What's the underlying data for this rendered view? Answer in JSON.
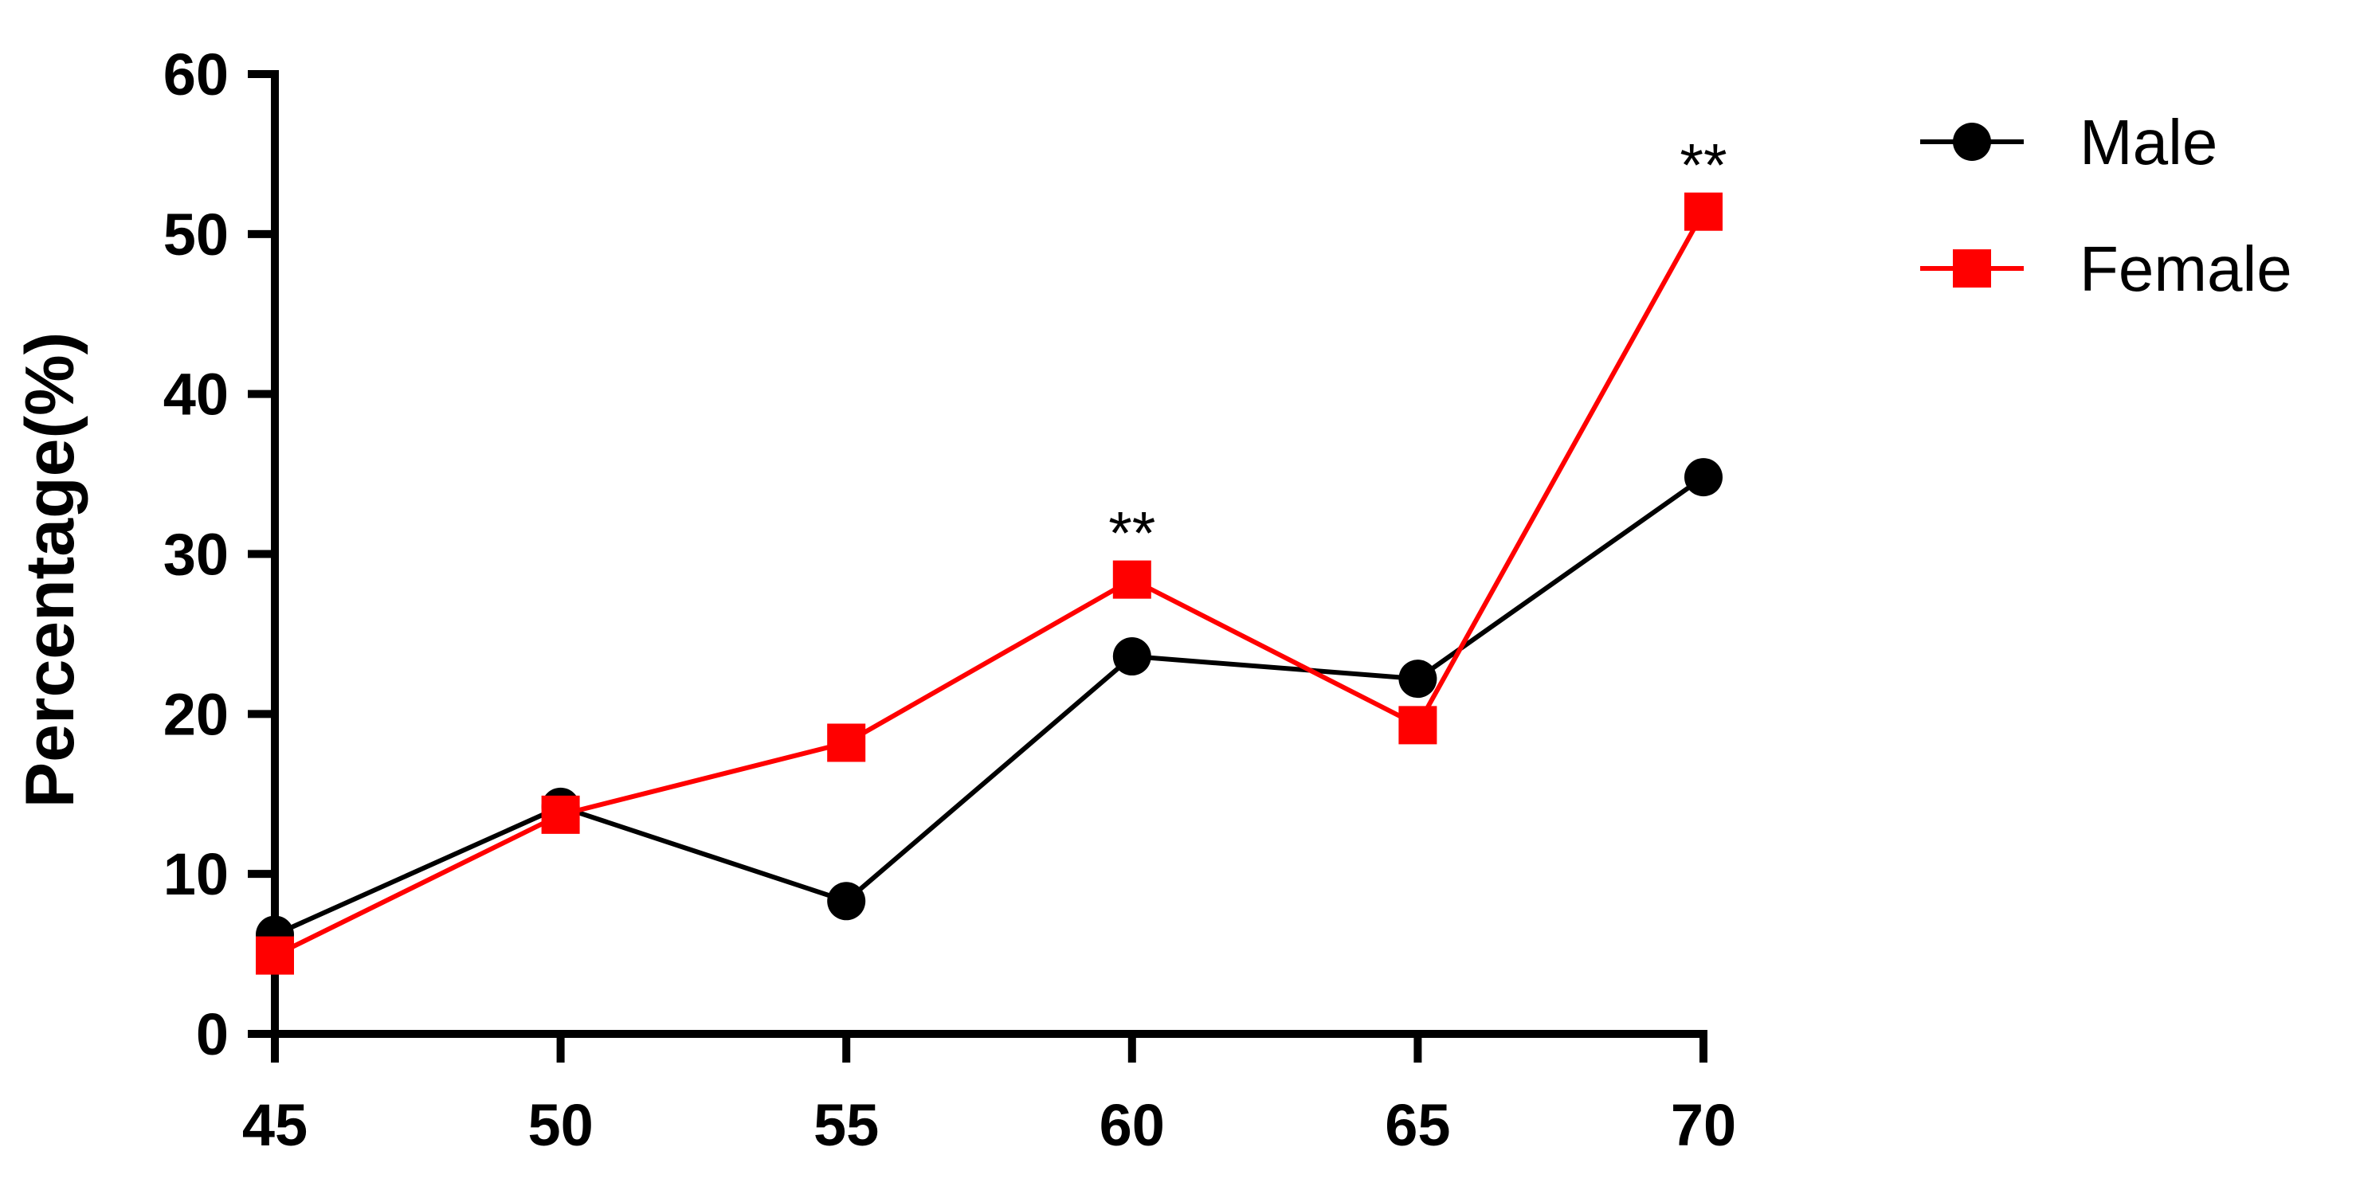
{
  "chart_data": {
    "type": "line",
    "title": "",
    "xlabel": "",
    "ylabel": "Percentage(%)",
    "x": [
      45,
      50,
      55,
      60,
      65,
      70
    ],
    "xticks": [
      "45",
      "50",
      "55",
      "60",
      "65",
      "70"
    ],
    "yticks": [
      "0",
      "10",
      "20",
      "30",
      "40",
      "50",
      "60"
    ],
    "ylim": [
      0,
      60
    ],
    "xlim": [
      45,
      70
    ],
    "grid": false,
    "legend_position": "top-right",
    "series": [
      {
        "name": "Male",
        "marker": "circle",
        "color": "#000000",
        "values": [
          6.2,
          14.2,
          8.3,
          23.6,
          22.2,
          34.8
        ]
      },
      {
        "name": "Female",
        "marker": "square",
        "color": "#ff0000",
        "values": [
          4.9,
          13.7,
          18.2,
          28.4,
          19.3,
          51.4
        ]
      }
    ],
    "annotations": [
      {
        "x": 60,
        "text": "**"
      },
      {
        "x": 70,
        "text": "**"
      }
    ]
  }
}
